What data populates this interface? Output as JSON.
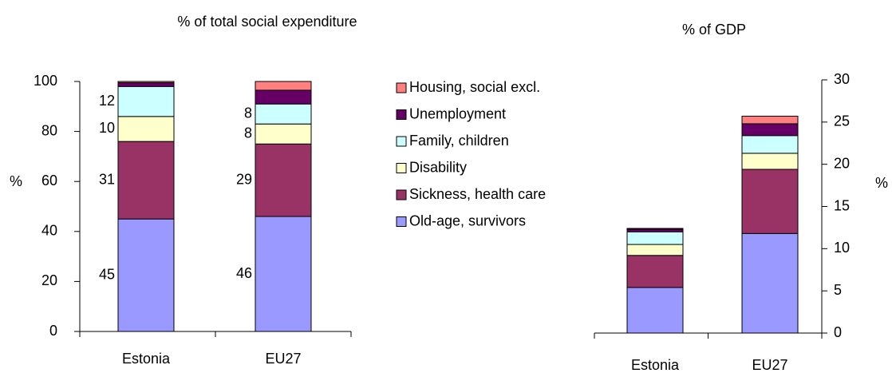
{
  "chart_data": [
    {
      "type": "stacked-bar",
      "title": "% of total social expenditure",
      "ylabel": "%",
      "categories": [
        "Estonia",
        "EU27"
      ],
      "ylim": [
        0,
        100
      ],
      "yticks": [
        0,
        20,
        40,
        60,
        80,
        100
      ],
      "series": [
        {
          "name": "Old-age, survivors",
          "color": "#9999ff",
          "values": [
            45,
            46
          ]
        },
        {
          "name": "Sickness, health care",
          "color": "#993366",
          "values": [
            31,
            29
          ]
        },
        {
          "name": "Disability",
          "color": "#ffffcc",
          "values": [
            10,
            8
          ]
        },
        {
          "name": "Family, children",
          "color": "#ccffff",
          "values": [
            12,
            8
          ]
        },
        {
          "name": "Unemployment",
          "color": "#660066",
          "values": [
            1.5,
            5.5
          ]
        },
        {
          "name": "Housing, social excl.",
          "color": "#ff8080",
          "values": [
            0.5,
            3.5
          ]
        }
      ]
    },
    {
      "type": "stacked-bar",
      "title": "% of GDP",
      "ylabel": "%",
      "categories": [
        "Estonia",
        "EU27"
      ],
      "ylim": [
        0,
        30
      ],
      "yticks": [
        0,
        5,
        10,
        15,
        20,
        25,
        30
      ],
      "series": [
        {
          "color": "#9999ff",
          "values": [
            5.4,
            11.8
          ]
        },
        {
          "color": "#993366",
          "values": [
            3.8,
            7.6
          ]
        },
        {
          "color": "#ffffcc",
          "values": [
            1.3,
            1.9
          ]
        },
        {
          "color": "#ccffff",
          "values": [
            1.5,
            2.1
          ]
        },
        {
          "color": "#660066",
          "values": [
            0.3,
            1.4
          ]
        },
        {
          "color": "#ff8080",
          "values": [
            0.1,
            0.9
          ]
        }
      ]
    }
  ]
}
